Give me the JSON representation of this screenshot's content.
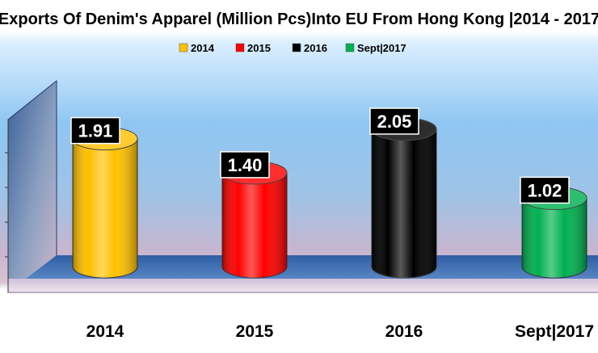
{
  "chart_data": {
    "type": "bar",
    "title": "Exports Of Denim's Apparel (Million Pcs)Into EU From Hong Kong |2014 - 2017",
    "categories": [
      "2014",
      "2015",
      "2016",
      "Sept|2017"
    ],
    "series": [
      {
        "name": "2014",
        "color": "#FFC000",
        "value": 1.91,
        "label": "1.91"
      },
      {
        "name": "2015",
        "color": "#FF0000",
        "value": 1.4,
        "label": "1.40"
      },
      {
        "name": "2016",
        "color": "#000000",
        "value": 2.05,
        "label": "2.05"
      },
      {
        "name": "Sept|2017",
        "color": "#00B050",
        "value": 1.02,
        "label": "1.02"
      }
    ],
    "legend_position": "top",
    "bar_shape": "cylinder",
    "ylim": [
      0,
      2.4
    ],
    "grid": false
  }
}
